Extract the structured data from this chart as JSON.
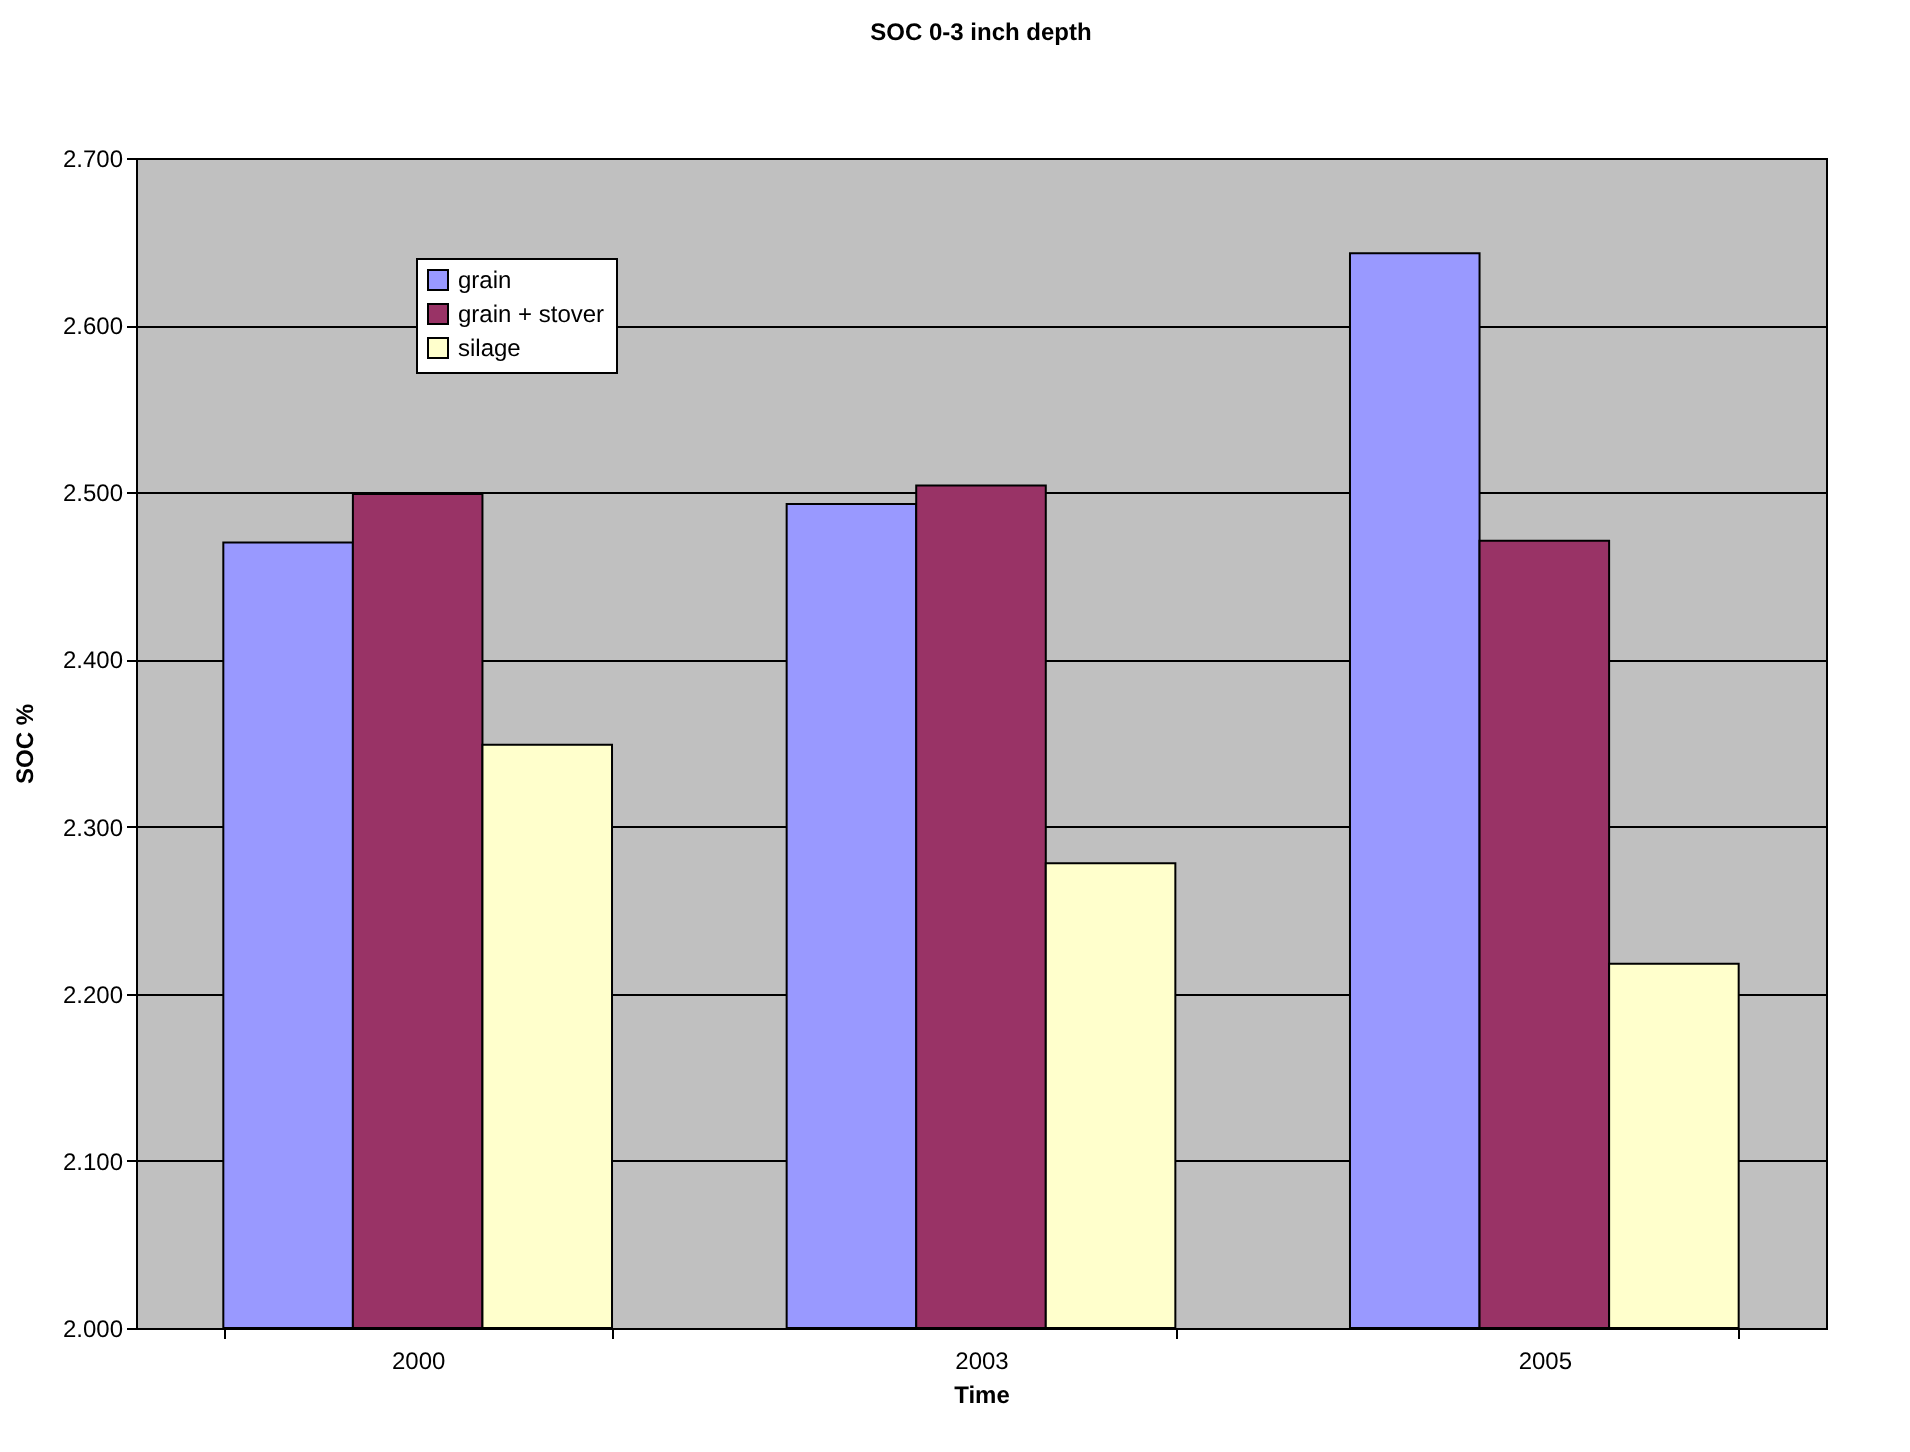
{
  "chart_data": {
    "type": "bar",
    "title": "SOC 0-3 inch depth",
    "xlabel": "Time",
    "ylabel": "SOC %",
    "categories": [
      "2000",
      "2003",
      "2005"
    ],
    "series": [
      {
        "name": "grain",
        "color": "#9999ff",
        "values": [
          2.47,
          2.493,
          2.643
        ]
      },
      {
        "name": "grain + stover",
        "color": "#993366",
        "values": [
          2.499,
          2.504,
          2.471
        ]
      },
      {
        "name": "silage",
        "color": "#ffffcc",
        "values": [
          2.349,
          2.278,
          2.218
        ]
      }
    ],
    "ylim": [
      2.0,
      2.7
    ],
    "yticks": [
      {
        "value": 2.0,
        "label": "2.000"
      },
      {
        "value": 2.1,
        "label": "2.100"
      },
      {
        "value": 2.2,
        "label": "2.200"
      },
      {
        "value": 2.3,
        "label": "2.300"
      },
      {
        "value": 2.4,
        "label": "2.400"
      },
      {
        "value": 2.5,
        "label": "2.500"
      },
      {
        "value": 2.6,
        "label": "2.600"
      },
      {
        "value": 2.7,
        "label": "2.700"
      }
    ],
    "grid": "y",
    "legend": "top left"
  }
}
